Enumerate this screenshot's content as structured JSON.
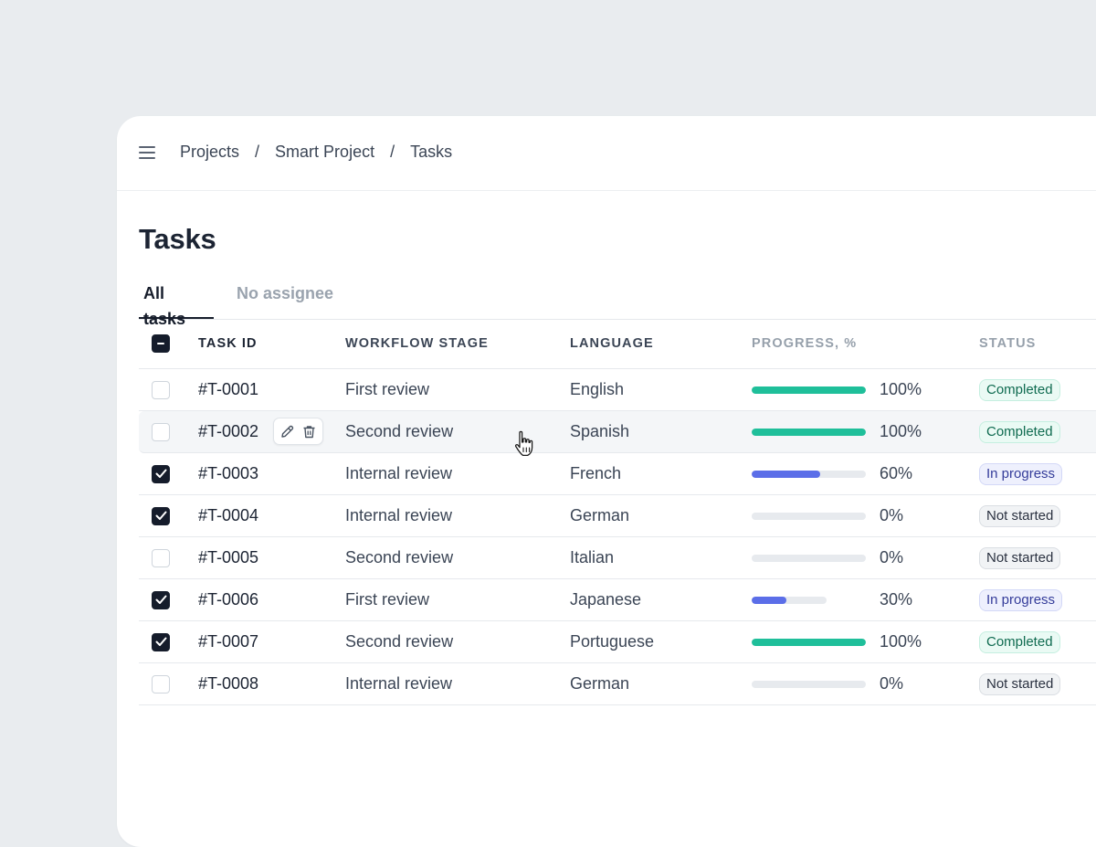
{
  "breadcrumb": {
    "projects": "Projects",
    "project": "Smart Project",
    "current": "Tasks",
    "separator": "/"
  },
  "page": {
    "title": "Tasks"
  },
  "tabs": [
    {
      "label": "All tasks",
      "active": true
    },
    {
      "label": "No assignee",
      "active": false
    }
  ],
  "table": {
    "headers": {
      "task_id": "TASK ID",
      "workflow_stage": "WORKFLOW STAGE",
      "language": "LANGUAGE",
      "progress": "PROGRESS, %",
      "status": "STATUS"
    },
    "select_all_state": "indeterminate",
    "rows": [
      {
        "id": "#T-0001",
        "stage": "First review",
        "language": "English",
        "progress": 100,
        "progress_label": "100%",
        "status": "Completed",
        "checked": false
      },
      {
        "id": "#T-0002",
        "stage": "Second review",
        "language": "Spanish",
        "progress": 100,
        "progress_label": "100%",
        "status": "Completed",
        "checked": false
      },
      {
        "id": "#T-0003",
        "stage": "Internal review",
        "language": "French",
        "progress": 60,
        "progress_label": "60%",
        "status": "In progress",
        "checked": true
      },
      {
        "id": "#T-0004",
        "stage": "Internal review",
        "language": "German",
        "progress": 0,
        "progress_label": "0%",
        "status": "Not started",
        "checked": true
      },
      {
        "id": "#T-0005",
        "stage": "Second review",
        "language": "Italian",
        "progress": 0,
        "progress_label": "0%",
        "status": "Not started",
        "checked": false
      },
      {
        "id": "#T-0006",
        "stage": "First review",
        "language": "Japanese",
        "progress": 30,
        "progress_label": "30%",
        "status": "In progress",
        "checked": true
      },
      {
        "id": "#T-0007",
        "stage": "Second review",
        "language": "Portuguese",
        "progress": 100,
        "progress_label": "100%",
        "status": "Completed",
        "checked": true
      },
      {
        "id": "#T-0008",
        "stage": "Internal review",
        "language": "German",
        "progress": 0,
        "progress_label": "0%",
        "status": "Not started",
        "checked": false
      }
    ]
  },
  "colors": {
    "completed_bar": "#1fbf9a",
    "in_progress_bar": "#5b6ee8",
    "track": "#e7eaee"
  }
}
